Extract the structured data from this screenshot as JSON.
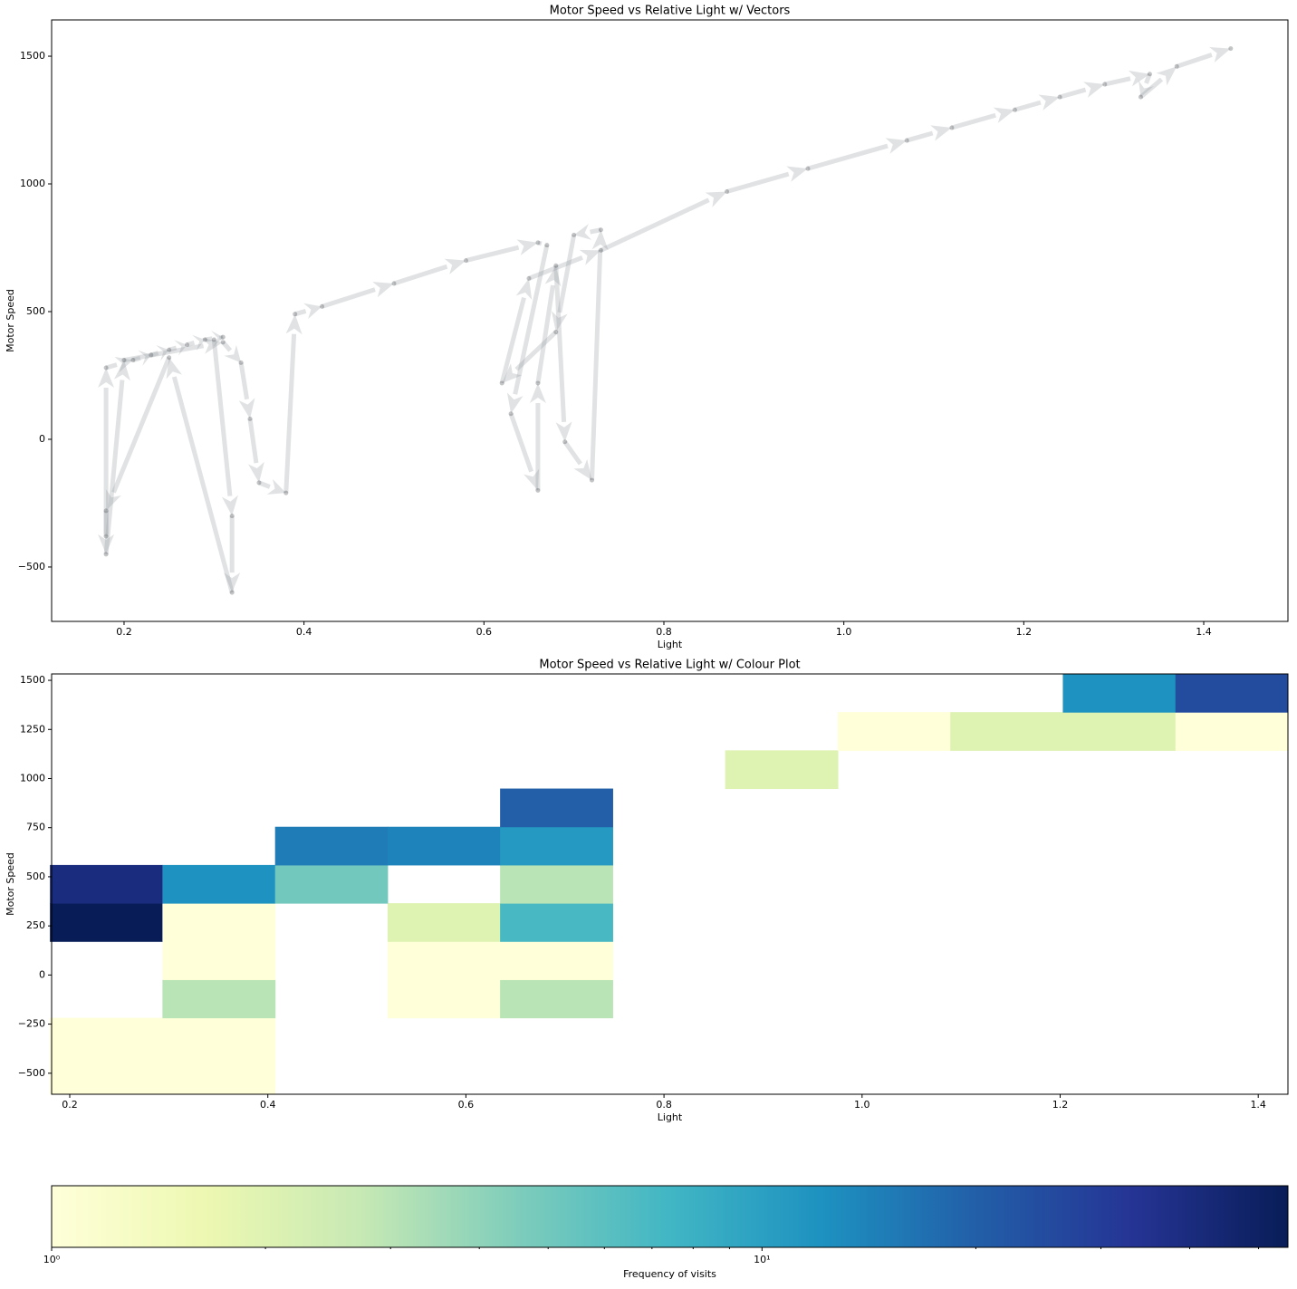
{
  "chart_data": [
    {
      "type": "quiver",
      "title": "Motor Speed vs Relative Light w/ Vectors",
      "x_label": "Light",
      "y_label": "Motor Speed",
      "color": "#9aa0a6",
      "x": [
        0.18,
        0.18,
        0.21,
        0.23,
        0.25,
        0.27,
        0.29,
        0.31,
        0.3,
        0.32,
        0.32,
        0.25,
        0.18,
        0.18,
        0.2,
        0.31,
        0.33,
        0.34,
        0.35,
        0.38,
        0.39,
        0.42,
        0.5,
        0.58,
        0.66,
        0.67,
        0.63,
        0.66,
        0.66,
        0.68,
        0.69,
        0.72,
        0.73,
        0.7,
        0.68,
        0.62,
        0.65,
        0.73,
        0.87,
        0.96,
        1.07,
        1.12,
        1.19,
        1.24,
        1.29,
        1.34,
        1.33,
        1.37,
        1.43
      ],
      "values": [
        -380,
        280,
        310,
        330,
        350,
        370,
        390,
        400,
        390,
        -300,
        -600,
        320,
        -280,
        -450,
        310,
        380,
        300,
        80,
        -170,
        -210,
        490,
        520,
        610,
        700,
        770,
        760,
        100,
        -200,
        220,
        680,
        -10,
        -160,
        820,
        800,
        420,
        220,
        630,
        740,
        970,
        1060,
        1170,
        1220,
        1290,
        1340,
        1390,
        1430,
        1340,
        1460,
        1530
      ],
      "xlim": [
        0.1195,
        1.4936
      ],
      "ylim": [
        -713,
        1642
      ],
      "xticks": [
        0.2,
        0.4,
        0.6,
        0.8,
        {
          "value": 1,
          "label": "1.0"
        },
        1.2,
        1.4
      ],
      "yticks": [
        {
          "value": -500,
          "label": "−500"
        },
        0,
        500,
        1000,
        1500
      ]
    },
    {
      "type": "heatmap",
      "title": "Motor Speed vs Relative Light w/ Colour Plot",
      "x_label": "Light",
      "y_label": "Motor Speed",
      "xbins": [
        0.18,
        0.2936,
        0.4073,
        0.5209,
        0.6345,
        0.7482,
        0.8618,
        0.9755,
        1.0891,
        1.2027,
        1.3164,
        1.43
      ],
      "ybins": [
        -607,
        -412.5,
        -218,
        -23.5,
        171,
        365.5,
        560,
        754.5,
        949,
        1143.5,
        1338,
        1532.5
      ],
      "counts": [
        [
          1,
          1,
          null,
          null,
          null,
          null,
          null,
          null,
          null,
          null,
          null
        ],
        [
          1,
          1,
          null,
          null,
          null,
          null,
          null,
          null,
          null,
          null,
          null
        ],
        [
          null,
          3,
          null,
          1,
          3,
          null,
          null,
          null,
          null,
          null,
          null
        ],
        [
          null,
          1,
          null,
          1,
          1,
          null,
          null,
          null,
          null,
          null,
          null
        ],
        [
          55,
          1,
          null,
          2,
          7,
          null,
          null,
          null,
          null,
          null,
          null
        ],
        [
          40,
          12,
          5,
          null,
          3,
          null,
          null,
          null,
          null,
          null,
          null
        ],
        [
          null,
          null,
          15,
          14,
          11,
          null,
          null,
          null,
          null,
          null,
          null
        ],
        [
          null,
          null,
          null,
          null,
          20,
          null,
          null,
          null,
          null,
          null,
          null
        ],
        [
          null,
          null,
          null,
          null,
          null,
          null,
          2,
          null,
          null,
          null,
          null
        ],
        [
          null,
          null,
          null,
          null,
          null,
          null,
          null,
          1,
          2,
          2,
          1
        ],
        [
          null,
          null,
          null,
          null,
          null,
          null,
          null,
          null,
          null,
          12,
          25
        ]
      ],
      "xlim": [
        0.1817,
        1.43
      ],
      "ylim": [
        -607,
        1532.5
      ],
      "xticks": [
        0.2,
        0.4,
        0.6,
        0.8,
        {
          "value": 1,
          "label": "1.0"
        },
        1.2,
        1.4
      ],
      "yticks": [
        {
          "value": -500,
          "label": "−500"
        },
        {
          "value": -250,
          "label": "−250"
        },
        0,
        250,
        500,
        750,
        1000,
        1250,
        1500
      ],
      "colorscale": [
        "#ffffd9",
        "#edf8b1",
        "#c7e9b4",
        "#7fcdbb",
        "#41b6c4",
        "#1d91c0",
        "#225ea8",
        "#253494",
        "#081d58"
      ],
      "log_color": true,
      "clim": [
        1,
        55
      ],
      "colorbar_label": "Frequency of visits",
      "colorbar_ticks": [
        {
          "value": 1,
          "label": "10⁰"
        },
        {
          "value": 10,
          "label": "10¹"
        }
      ],
      "colorbar_minor_ticks": [
        2,
        3,
        4,
        5,
        6,
        7,
        8,
        9,
        20,
        30,
        40,
        50
      ]
    }
  ]
}
